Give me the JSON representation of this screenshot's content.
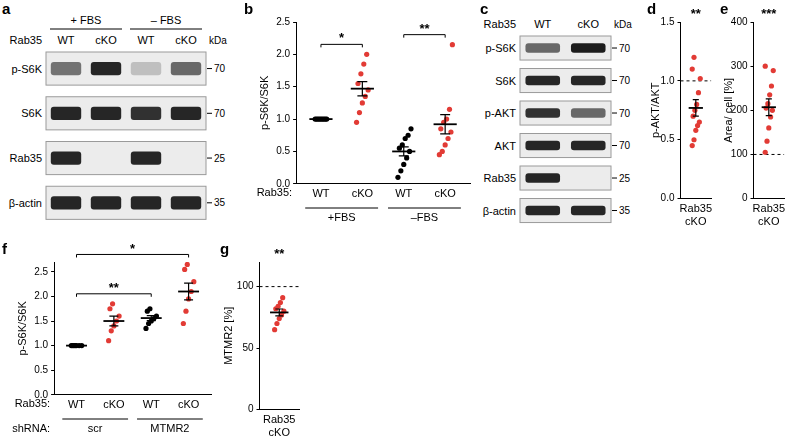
{
  "chart_data": [
    {
      "panel": "b",
      "type": "scatter",
      "y_label": "p-S6K/S6K",
      "x_title": "Rab35:",
      "categories": [
        "WT",
        "cKO",
        "WT",
        "cKO"
      ],
      "groups": [
        "+FBS",
        "+FBS",
        "–FBS",
        "–FBS"
      ],
      "colors": [
        "#000000",
        "#e23b35",
        "#000000",
        "#e23b35"
      ],
      "values": [
        [
          1,
          1,
          1,
          1,
          1,
          1,
          1,
          1,
          1
        ],
        [
          0.95,
          1.1,
          1.25,
          1.35,
          1.45,
          1.55,
          1.7,
          1.85,
          2.0
        ],
        [
          0.1,
          0.2,
          0.3,
          0.4,
          0.5,
          0.55,
          0.6,
          0.7,
          0.75,
          0.85
        ],
        [
          0.45,
          0.5,
          0.6,
          0.7,
          0.8,
          0.85,
          0.95,
          1.0,
          1.15,
          2.15
        ]
      ],
      "mean": [
        1,
        1.47,
        0.5,
        0.92
      ],
      "sem": [
        0,
        0.11,
        0.07,
        0.15
      ],
      "ylim": [
        0,
        2.5
      ],
      "yticks": [
        {
          "value": 0,
          "label": "0.0"
        },
        0.5,
        {
          "value": 1,
          "label": "1.0"
        },
        1.5,
        {
          "value": 2,
          "label": "2.0"
        },
        2.5
      ],
      "significance": [
        {
          "label": "*",
          "from": 0,
          "to": 1
        },
        {
          "label": "**",
          "from": 2,
          "to": 3
        }
      ],
      "grid": false
    },
    {
      "panel": "d",
      "type": "scatter",
      "y_label": "p-AKT/AKT",
      "categories": [
        "Rab35 cKO"
      ],
      "colors": [
        "#e23b35"
      ],
      "values": [
        [
          0.45,
          0.5,
          0.58,
          0.62,
          0.65,
          0.7,
          0.75,
          0.8,
          0.9,
          1.02,
          1.1,
          1.2
        ]
      ],
      "mean": [
        0.77
      ],
      "sem": [
        0.07
      ],
      "reference_line": 1,
      "ylim": [
        0,
        1.5
      ],
      "yticks": [
        {
          "value": 0,
          "label": "0.0"
        },
        0.5,
        {
          "value": 1,
          "label": "1.0"
        },
        1.5
      ],
      "significance": [
        {
          "label": "**"
        }
      ],
      "grid": false
    },
    {
      "panel": "e",
      "type": "scatter",
      "y_label": "Area/ cell [%]",
      "categories": [
        "Rab35 cKO"
      ],
      "colors": [
        "#e23b35"
      ],
      "values": [
        [
          105,
          130,
          160,
          185,
          200,
          205,
          215,
          235,
          255,
          290,
          300
        ]
      ],
      "mean": [
        207
      ],
      "sem": [
        19
      ],
      "reference_line": 100,
      "ylim": [
        0,
        400
      ],
      "yticks": [
        0,
        100,
        200,
        300,
        400
      ],
      "significance": [
        {
          "label": "***"
        }
      ],
      "grid": false
    },
    {
      "panel": "f",
      "type": "scatter",
      "y_label": "p-S6K/S6K",
      "x_title": "Rab35:",
      "group_title": "shRNA:",
      "categories": [
        "WT",
        "cKO",
        "WT",
        "cKO"
      ],
      "groups": [
        "scr",
        "scr",
        "MTMR2",
        "MTMR2"
      ],
      "colors": [
        "#000000",
        "#e23b35",
        "#000000",
        "#e23b35"
      ],
      "values": [
        [
          1,
          1,
          1,
          1,
          1,
          1,
          1
        ],
        [
          1.1,
          1.3,
          1.4,
          1.5,
          1.6,
          1.75,
          1.85
        ],
        [
          1.35,
          1.45,
          1.5,
          1.55,
          1.6,
          1.7,
          1.75
        ],
        [
          1.45,
          1.7,
          1.95,
          2.1,
          2.3,
          2.55,
          2.65
        ]
      ],
      "mean": [
        1,
        1.5,
        1.56,
        2.1
      ],
      "sem": [
        0,
        0.1,
        0.05,
        0.17
      ],
      "ylim": [
        0,
        2.7
      ],
      "yticks": [
        {
          "value": 0,
          "label": "0.0"
        },
        0.5,
        {
          "value": 1,
          "label": "1.0"
        },
        1.5,
        {
          "value": 2,
          "label": "2.0"
        },
        2.5
      ],
      "significance": [
        {
          "label": "**",
          "from": 0,
          "to": 2
        },
        {
          "label": "*",
          "from": 0,
          "to": 3
        }
      ],
      "grid": false
    },
    {
      "panel": "g",
      "type": "scatter",
      "y_label": "MTMR2 [%]",
      "categories": [
        "Rab35 cKO"
      ],
      "colors": [
        "#e23b35"
      ],
      "values": [
        [
          65,
          70,
          74,
          77,
          80,
          82,
          84,
          87,
          91
        ]
      ],
      "mean": [
        79
      ],
      "sem": [
        2.8
      ],
      "reference_line": 100,
      "ylim": [
        0,
        120
      ],
      "yticks": [
        0,
        50,
        100
      ],
      "significance": [
        {
          "label": "**"
        }
      ],
      "grid": false
    }
  ],
  "blots": [
    {
      "panel": "a",
      "header_label": "Rab35",
      "unit": "kDa",
      "conditions": [
        {
          "label": "+ FBS",
          "lanes": [
            "WT",
            "cKO"
          ]
        },
        {
          "label": "– FBS",
          "lanes": [
            "WT",
            "cKO"
          ]
        }
      ],
      "rows": [
        {
          "label": "p-S6K",
          "marker": 70,
          "intensity": [
            0.55,
            0.9,
            0.2,
            0.6
          ]
        },
        {
          "label": "S6K",
          "marker": 70,
          "intensity": [
            0.9,
            0.9,
            0.85,
            0.9
          ]
        },
        {
          "label": "Rab35",
          "marker": 25,
          "intensity": [
            0.9,
            0,
            0.9,
            0
          ]
        },
        {
          "label": "β-actin",
          "marker": 35,
          "intensity": [
            0.9,
            0.9,
            0.9,
            0.9
          ]
        }
      ]
    },
    {
      "panel": "c",
      "header_label": "Rab35",
      "unit": "kDa",
      "lanes": [
        "WT",
        "cKO"
      ],
      "rows": [
        {
          "label": "p-S6K",
          "marker": 70,
          "intensity": [
            0.6,
            0.95
          ]
        },
        {
          "label": "S6K",
          "marker": 70,
          "intensity": [
            0.9,
            0.9
          ]
        },
        {
          "label": "p-AKT",
          "marker": 70,
          "intensity": [
            0.85,
            0.6
          ]
        },
        {
          "label": "AKT",
          "marker": 70,
          "intensity": [
            0.9,
            0.9
          ]
        },
        {
          "label": "Rab35",
          "marker": 25,
          "intensity": [
            0.9,
            0
          ]
        },
        {
          "label": "β-actin",
          "marker": 35,
          "intensity": [
            0.9,
            0.9
          ]
        }
      ]
    }
  ]
}
